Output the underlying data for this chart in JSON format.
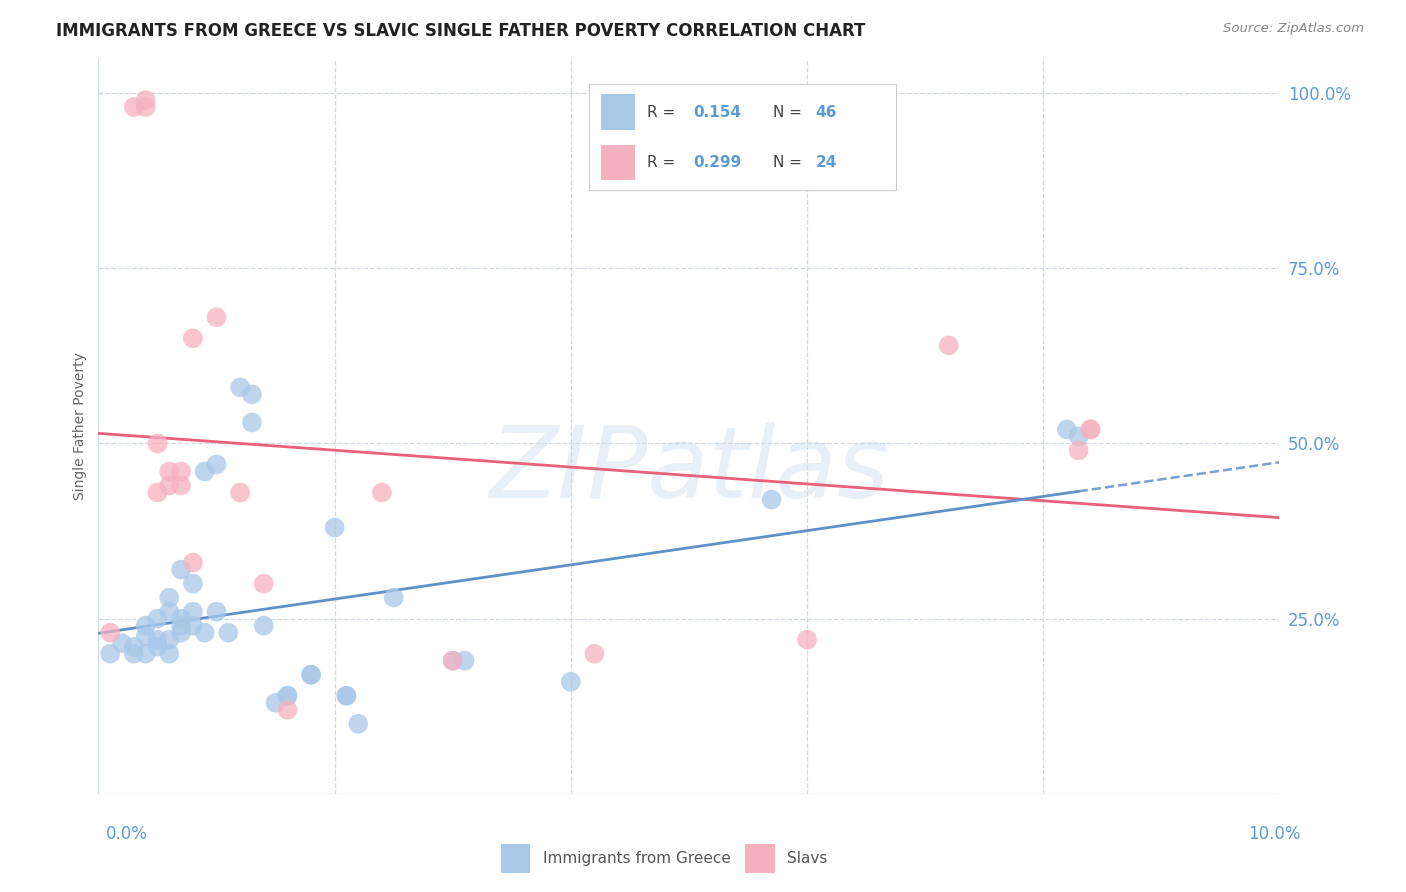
{
  "title": "IMMIGRANTS FROM GREECE VS SLAVIC SINGLE FATHER POVERTY CORRELATION CHART",
  "source": "Source: ZipAtlas.com",
  "ylabel": "Single Father Poverty",
  "ylabel_right_ticks": [
    "100.0%",
    "75.0%",
    "50.0%",
    "25.0%"
  ],
  "ylabel_right_vals": [
    1.0,
    0.75,
    0.5,
    0.25
  ],
  "xlim": [
    0.0,
    0.1
  ],
  "ylim": [
    0.0,
    1.05
  ],
  "watermark_text": "ZIPatlas",
  "legend_r1": "R = 0.154",
  "legend_n1": "N = 46",
  "legend_r2": "R = 0.299",
  "legend_n2": "N = 24",
  "color_greece": "#a8c8e8",
  "color_slavs": "#f5b0c0",
  "color_greece_edge": "#7aaad0",
  "color_slavs_edge": "#e87090",
  "color_greece_line": "#6090c8",
  "color_slavs_line": "#e8607a",
  "color_text_blue": "#5b9bd5",
  "color_grid": "#d0d8e0",
  "legend_box_color": "#f0f4f8",
  "greece_x": [
    0.001,
    0.002,
    0.003,
    0.003,
    0.004,
    0.004,
    0.004,
    0.005,
    0.005,
    0.005,
    0.006,
    0.006,
    0.006,
    0.006,
    0.007,
    0.007,
    0.007,
    0.007,
    0.008,
    0.008,
    0.008,
    0.009,
    0.009,
    0.01,
    0.01,
    0.011,
    0.012,
    0.013,
    0.013,
    0.014,
    0.015,
    0.016,
    0.016,
    0.018,
    0.018,
    0.02,
    0.021,
    0.021,
    0.022,
    0.025,
    0.03,
    0.031,
    0.04,
    0.057,
    0.082,
    0.083
  ],
  "greece_y": [
    0.2,
    0.215,
    0.2,
    0.21,
    0.24,
    0.225,
    0.2,
    0.22,
    0.25,
    0.21,
    0.28,
    0.26,
    0.22,
    0.2,
    0.32,
    0.25,
    0.24,
    0.23,
    0.3,
    0.26,
    0.24,
    0.46,
    0.23,
    0.47,
    0.26,
    0.23,
    0.58,
    0.57,
    0.53,
    0.24,
    0.13,
    0.14,
    0.14,
    0.17,
    0.17,
    0.38,
    0.14,
    0.14,
    0.1,
    0.28,
    0.19,
    0.19,
    0.16,
    0.42,
    0.52,
    0.51
  ],
  "slavs_x": [
    0.001,
    0.003,
    0.004,
    0.004,
    0.005,
    0.005,
    0.006,
    0.006,
    0.007,
    0.007,
    0.008,
    0.008,
    0.01,
    0.012,
    0.014,
    0.016,
    0.024,
    0.03,
    0.042,
    0.06,
    0.072,
    0.083,
    0.084,
    0.084
  ],
  "slavs_y": [
    0.23,
    0.98,
    0.98,
    0.99,
    0.5,
    0.43,
    0.46,
    0.44,
    0.46,
    0.44,
    0.65,
    0.33,
    0.68,
    0.43,
    0.3,
    0.12,
    0.43,
    0.19,
    0.2,
    0.22,
    0.64,
    0.49,
    0.52,
    0.52
  ]
}
